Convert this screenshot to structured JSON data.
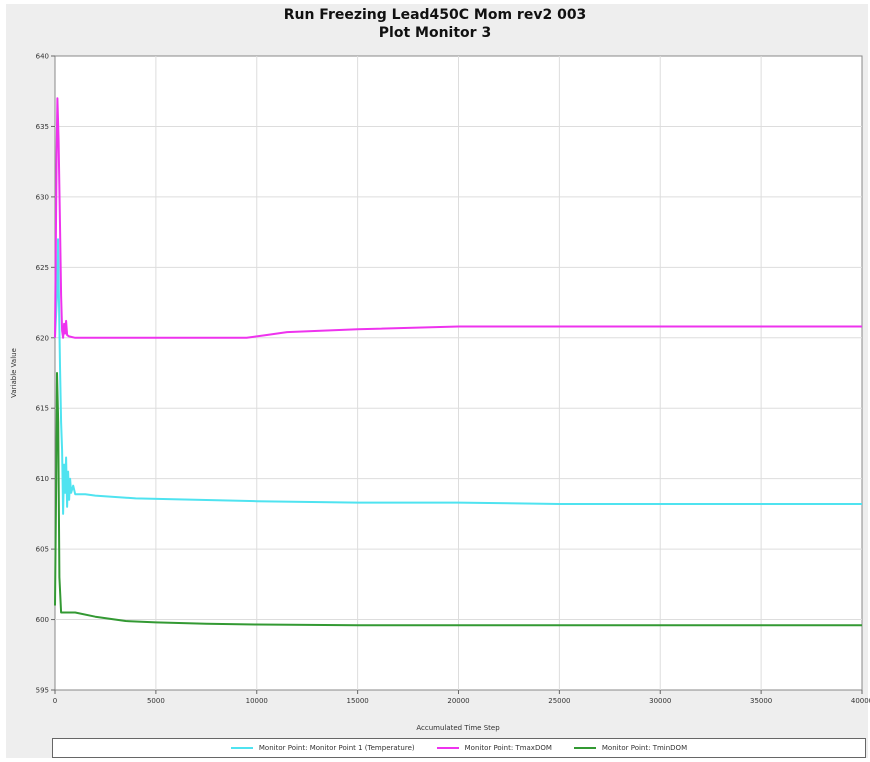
{
  "chart_data": {
    "type": "line",
    "title": "Run Freezing Lead450C Mom rev2 003",
    "subtitle": "Plot Monitor 3",
    "xlabel": "Accumulated Time Step",
    "ylabel": "Variable Value",
    "xlim": [
      0,
      40000
    ],
    "ylim": [
      595,
      640
    ],
    "x_ticks": [
      0,
      5000,
      10000,
      15000,
      20000,
      25000,
      30000,
      35000,
      40000
    ],
    "x_tick_labels": [
      "0",
      "5000",
      "10000",
      "15000",
      "20000",
      "25000",
      "30000",
      "35000",
      "40000"
    ],
    "y_ticks": [
      595,
      600,
      605,
      610,
      615,
      620,
      625,
      630,
      635,
      640
    ],
    "y_tick_labels": [
      "595",
      "600",
      "605",
      "610",
      "615",
      "620",
      "625",
      "630",
      "635",
      "640"
    ],
    "grid": true,
    "legend_position": "bottom",
    "series": [
      {
        "name": "Monitor Point: Monitor Point 1 (Temperature)",
        "color": "#4fe3f0",
        "points": [
          [
            0,
            620
          ],
          [
            100,
            623
          ],
          [
            150,
            627
          ],
          [
            250,
            618
          ],
          [
            300,
            614
          ],
          [
            350,
            612
          ],
          [
            400,
            607.5
          ],
          [
            450,
            611
          ],
          [
            500,
            609
          ],
          [
            550,
            611.5
          ],
          [
            600,
            608
          ],
          [
            650,
            610.5
          ],
          [
            700,
            608.5
          ],
          [
            750,
            610
          ],
          [
            800,
            609
          ],
          [
            900,
            609.5
          ],
          [
            1000,
            608.9
          ],
          [
            1500,
            608.9
          ],
          [
            2000,
            608.8
          ],
          [
            4000,
            608.6
          ],
          [
            10000,
            608.4
          ],
          [
            15000,
            608.3
          ],
          [
            20000,
            608.3
          ],
          [
            25000,
            608.2
          ],
          [
            30000,
            608.2
          ],
          [
            35000,
            608.2
          ],
          [
            40000,
            608.2
          ]
        ]
      },
      {
        "name": "Monitor Point: TmaxDOM",
        "color": "#ee33ee",
        "points": [
          [
            0,
            620
          ],
          [
            80,
            633
          ],
          [
            120,
            637
          ],
          [
            180,
            634
          ],
          [
            250,
            628
          ],
          [
            300,
            623
          ],
          [
            350,
            620.5
          ],
          [
            400,
            620
          ],
          [
            450,
            621
          ],
          [
            500,
            620.3
          ],
          [
            550,
            621.2
          ],
          [
            600,
            620.2
          ],
          [
            700,
            620.1
          ],
          [
            1000,
            620
          ],
          [
            5000,
            620
          ],
          [
            9500,
            620
          ],
          [
            10500,
            620.2
          ],
          [
            11500,
            620.4
          ],
          [
            15000,
            620.6
          ],
          [
            20000,
            620.8
          ],
          [
            25000,
            620.8
          ],
          [
            30000,
            620.8
          ],
          [
            35000,
            620.8
          ],
          [
            40000,
            620.8
          ]
        ]
      },
      {
        "name": "Monitor Point: TminDOM",
        "color": "#339933",
        "points": [
          [
            0,
            601
          ],
          [
            60,
            610
          ],
          [
            100,
            617.5
          ],
          [
            160,
            614
          ],
          [
            220,
            603
          ],
          [
            300,
            600.5
          ],
          [
            500,
            600.5
          ],
          [
            1000,
            600.5
          ],
          [
            2000,
            600.2
          ],
          [
            3500,
            599.9
          ],
          [
            5000,
            599.8
          ],
          [
            7500,
            599.7
          ],
          [
            10000,
            599.65
          ],
          [
            15000,
            599.6
          ],
          [
            20000,
            599.6
          ],
          [
            25000,
            599.6
          ],
          [
            30000,
            599.6
          ],
          [
            35000,
            599.6
          ],
          [
            40000,
            599.6
          ]
        ]
      }
    ]
  }
}
